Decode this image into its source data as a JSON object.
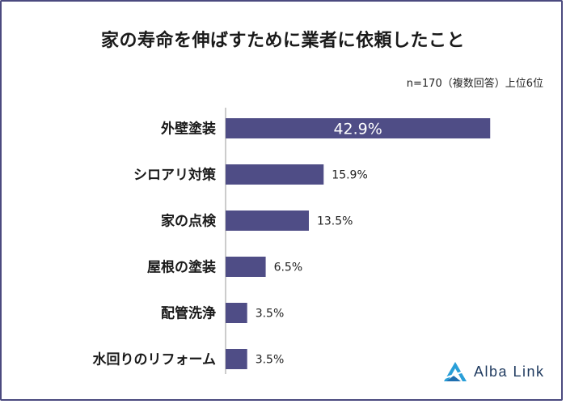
{
  "chart_data": {
    "type": "bar",
    "orientation": "horizontal",
    "title": "家の寿命を伸ばすために業者に依頼したこと",
    "note": "n=170（複数回答）上位6位",
    "categories": [
      "外壁塗装",
      "シロアリ対策",
      "家の点検",
      "屋根の塗装",
      "配管洗浄",
      "水回りのリフォーム"
    ],
    "values": [
      42.9,
      15.9,
      13.5,
      6.5,
      3.5,
      3.5
    ],
    "value_labels": [
      "42.9%",
      "15.9%",
      "13.5%",
      "6.5%",
      "3.5%",
      "3.5%"
    ],
    "bar_color": "#4f4d86",
    "label_inside_color": "#ffffff",
    "xlim": [
      0,
      43
    ],
    "grid": false
  },
  "logo": {
    "text": "Alba Link",
    "colors": [
      "#2a9fd8",
      "#1f3a5f"
    ]
  }
}
